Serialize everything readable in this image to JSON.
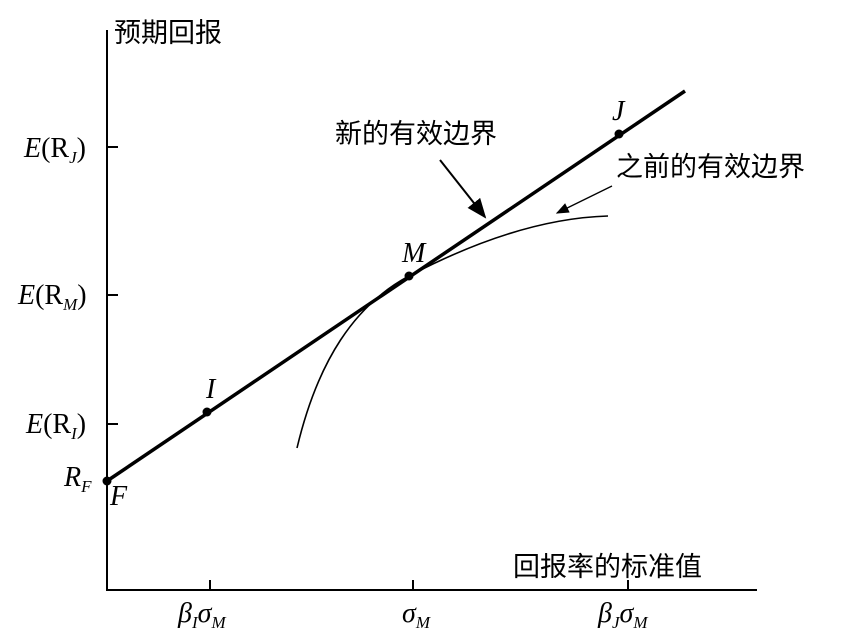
{
  "diagram": {
    "y_axis_label": "预期回报",
    "x_axis_label": "回报率的标准值",
    "y_labels": [
      {
        "base": "E",
        "open": "(R",
        "sub": "J",
        "close": ")"
      },
      {
        "base": "E",
        "open": "(R",
        "sub": "M",
        "close": ")"
      },
      {
        "base": "E",
        "open": "(R",
        "sub": "I",
        "close": ")"
      },
      {
        "base": "R",
        "sub": "F"
      }
    ],
    "x_labels": [
      {
        "a": "β",
        "a_sub": "I",
        "b": "σ",
        "b_sub": "M"
      },
      {
        "b": "σ",
        "b_sub": "M"
      },
      {
        "a": "β",
        "a_sub": "J",
        "b": "σ",
        "b_sub": "M"
      }
    ],
    "points": [
      "J",
      "M",
      "I",
      "F"
    ],
    "annotations": [
      "新的有效边界",
      "之前的有效边界"
    ]
  }
}
